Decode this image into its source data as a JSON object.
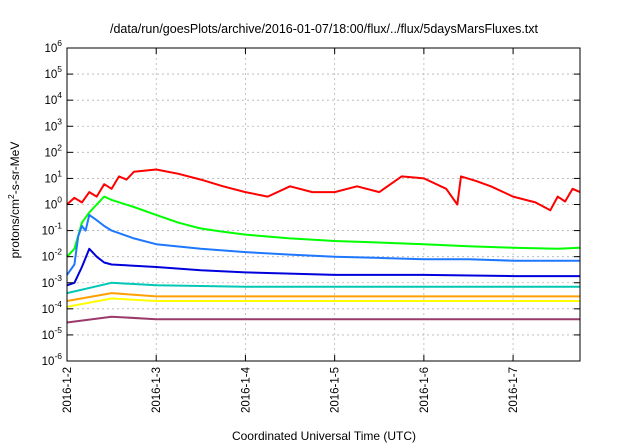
{
  "chart_data": {
    "type": "line",
    "title": "/data/run/goesPlots/archive/2016-01-07/18:00/flux/../flux/5daysMarsFluxes.txt",
    "xlabel": "Coordinated Universal Time (UTC)",
    "ylabel": {
      "base": "protons/cm",
      "sup": "2",
      "rest": "-s-sr-MeV"
    },
    "y_scale": "log",
    "ylim": [
      1e-06,
      1000000.0
    ],
    "y_ticks": [
      {
        "value": 1e-06,
        "base": "10",
        "exp": "-6"
      },
      {
        "value": 1e-05,
        "base": "10",
        "exp": "-5"
      },
      {
        "value": 0.0001,
        "base": "10",
        "exp": "-4"
      },
      {
        "value": 0.001,
        "base": "10",
        "exp": "-3"
      },
      {
        "value": 0.01,
        "base": "10",
        "exp": "-2"
      },
      {
        "value": 0.1,
        "base": "10",
        "exp": "-1"
      },
      {
        "value": 1,
        "base": "10",
        "exp": "0"
      },
      {
        "value": 10,
        "base": "10",
        "exp": "1"
      },
      {
        "value": 100,
        "base": "10",
        "exp": "2"
      },
      {
        "value": 1000,
        "base": "10",
        "exp": "3"
      },
      {
        "value": 10000,
        "base": "10",
        "exp": "4"
      },
      {
        "value": 100000,
        "base": "10",
        "exp": "5"
      },
      {
        "value": 1000000,
        "base": "10",
        "exp": "6"
      }
    ],
    "xlim": [
      "2016-01-02T00:00",
      "2016-01-07T18:00"
    ],
    "x_ticks": [
      {
        "value": "2016-01-02T00:00",
        "label": "2016-1-2"
      },
      {
        "value": "2016-01-03T00:00",
        "label": "2016-1-3"
      },
      {
        "value": "2016-01-04T00:00",
        "label": "2016-1-4"
      },
      {
        "value": "2016-01-05T00:00",
        "label": "2016-1-5"
      },
      {
        "value": "2016-01-06T00:00",
        "label": "2016-1-6"
      },
      {
        "value": "2016-01-07T00:00",
        "label": "2016-1-7"
      }
    ],
    "grid": true,
    "legend": "none",
    "series": [
      {
        "color": "#ff0000",
        "x": [
          "2016-01-02T00:00",
          "2016-01-02T02:00",
          "2016-01-02T04:00",
          "2016-01-02T06:00",
          "2016-01-02T08:00",
          "2016-01-02T10:00",
          "2016-01-02T12:00",
          "2016-01-02T14:00",
          "2016-01-02T16:00",
          "2016-01-02T18:00",
          "2016-01-03T00:00",
          "2016-01-03T06:00",
          "2016-01-03T12:00",
          "2016-01-03T18:00",
          "2016-01-04T00:00",
          "2016-01-04T06:00",
          "2016-01-04T12:00",
          "2016-01-04T18:00",
          "2016-01-05T00:00",
          "2016-01-05T06:00",
          "2016-01-05T12:00",
          "2016-01-05T18:00",
          "2016-01-06T00:00",
          "2016-01-06T06:00",
          "2016-01-06T09:00",
          "2016-01-06T10:00",
          "2016-01-06T14:00",
          "2016-01-06T18:00",
          "2016-01-07T00:00",
          "2016-01-07T06:00",
          "2016-01-07T10:00",
          "2016-01-07T12:00",
          "2016-01-07T14:00",
          "2016-01-07T16:00",
          "2016-01-07T18:00"
        ],
        "y": [
          1.0,
          1.8,
          1.2,
          3.0,
          2.0,
          6.0,
          4.0,
          12,
          9,
          18,
          22,
          15,
          9,
          5,
          3,
          2,
          5,
          3,
          3,
          5,
          3,
          12,
          10,
          4,
          1.0,
          12,
          8,
          5,
          2,
          1.2,
          0.6,
          2,
          1.3,
          4,
          3
        ]
      },
      {
        "color": "#00ff00",
        "x": [
          "2016-01-02T00:00",
          "2016-01-02T02:00",
          "2016-01-02T04:00",
          "2016-01-02T06:00",
          "2016-01-02T08:00",
          "2016-01-02T10:00",
          "2016-01-02T12:00",
          "2016-01-02T18:00",
          "2016-01-03T00:00",
          "2016-01-03T06:00",
          "2016-01-03T12:00",
          "2016-01-03T18:00",
          "2016-01-04T00:00",
          "2016-01-04T12:00",
          "2016-01-05T00:00",
          "2016-01-05T12:00",
          "2016-01-06T00:00",
          "2016-01-06T12:00",
          "2016-01-07T00:00",
          "2016-01-07T12:00",
          "2016-01-07T18:00"
        ],
        "y": [
          0.01,
          0.02,
          0.2,
          0.5,
          1.0,
          2.0,
          1.5,
          0.8,
          0.4,
          0.2,
          0.12,
          0.09,
          0.07,
          0.05,
          0.04,
          0.035,
          0.03,
          0.025,
          0.022,
          0.02,
          0.022
        ]
      },
      {
        "color": "#1e78ff",
        "x": [
          "2016-01-02T00:00",
          "2016-01-02T02:00",
          "2016-01-02T03:00",
          "2016-01-02T04:00",
          "2016-01-02T05:00",
          "2016-01-02T06:00",
          "2016-01-02T08:00",
          "2016-01-02T10:00",
          "2016-01-02T12:00",
          "2016-01-02T18:00",
          "2016-01-03T00:00",
          "2016-01-03T12:00",
          "2016-01-04T00:00",
          "2016-01-04T12:00",
          "2016-01-05T00:00",
          "2016-01-05T12:00",
          "2016-01-06T00:00",
          "2016-01-06T12:00",
          "2016-01-07T00:00",
          "2016-01-07T12:00",
          "2016-01-07T18:00"
        ],
        "y": [
          0.002,
          0.005,
          0.06,
          0.15,
          0.1,
          0.4,
          0.25,
          0.15,
          0.1,
          0.05,
          0.03,
          0.02,
          0.015,
          0.012,
          0.01,
          0.009,
          0.008,
          0.008,
          0.007,
          0.007,
          0.007
        ]
      },
      {
        "color": "#0000dd",
        "x": [
          "2016-01-02T00:00",
          "2016-01-02T02:00",
          "2016-01-02T04:00",
          "2016-01-02T06:00",
          "2016-01-02T08:00",
          "2016-01-02T10:00",
          "2016-01-02T12:00",
          "2016-01-03T00:00",
          "2016-01-03T12:00",
          "2016-01-04T00:00",
          "2016-01-05T00:00",
          "2016-01-06T00:00",
          "2016-01-07T00:00",
          "2016-01-07T18:00"
        ],
        "y": [
          0.0008,
          0.001,
          0.004,
          0.02,
          0.01,
          0.006,
          0.005,
          0.004,
          0.003,
          0.0025,
          0.002,
          0.002,
          0.0018,
          0.0018
        ]
      },
      {
        "color": "#00c8b4",
        "x": [
          "2016-01-02T00:00",
          "2016-01-02T12:00",
          "2016-01-03T00:00",
          "2016-01-04T00:00",
          "2016-01-05T00:00",
          "2016-01-06T00:00",
          "2016-01-07T00:00",
          "2016-01-07T18:00"
        ],
        "y": [
          0.0004,
          0.001,
          0.0008,
          0.0007,
          0.0007,
          0.0007,
          0.0007,
          0.0007
        ]
      },
      {
        "color": "#ffa000",
        "x": [
          "2016-01-02T00:00",
          "2016-01-02T12:00",
          "2016-01-03T00:00",
          "2016-01-04T00:00",
          "2016-01-05T00:00",
          "2016-01-06T00:00",
          "2016-01-07T00:00",
          "2016-01-07T18:00"
        ],
        "y": [
          0.0002,
          0.0004,
          0.0003,
          0.0003,
          0.0003,
          0.0003,
          0.0003,
          0.0003
        ]
      },
      {
        "color": "#ffff00",
        "x": [
          "2016-01-02T00:00",
          "2016-01-02T12:00",
          "2016-01-03T00:00",
          "2016-01-04T00:00",
          "2016-01-05T00:00",
          "2016-01-06T00:00",
          "2016-01-07T00:00",
          "2016-01-07T18:00"
        ],
        "y": [
          0.00012,
          0.00025,
          0.0002,
          0.0002,
          0.0002,
          0.0002,
          0.0002,
          0.0002
        ]
      },
      {
        "color": "#9a3a6a",
        "x": [
          "2016-01-02T00:00",
          "2016-01-02T12:00",
          "2016-01-03T00:00",
          "2016-01-04T00:00",
          "2016-01-05T00:00",
          "2016-01-06T00:00",
          "2016-01-07T00:00",
          "2016-01-07T18:00"
        ],
        "y": [
          3e-05,
          5e-05,
          4e-05,
          4e-05,
          4e-05,
          4e-05,
          4e-05,
          4e-05
        ]
      }
    ]
  }
}
